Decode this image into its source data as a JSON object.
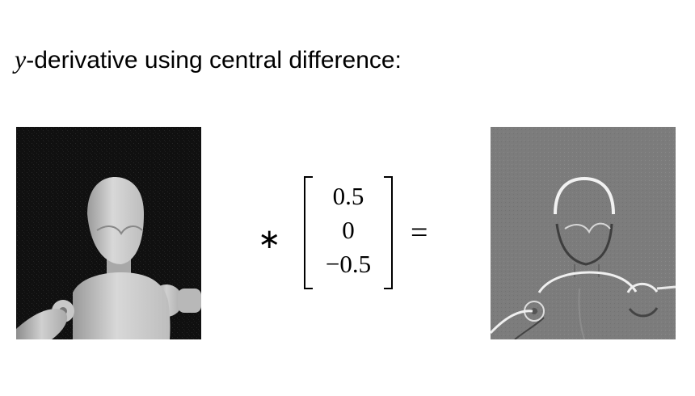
{
  "title": {
    "variable": "y",
    "rest": "-derivative using central difference:"
  },
  "images": {
    "input": {
      "icon": "wooden-mannequin-photo"
    },
    "output": {
      "icon": "mannequin-y-derivative-emboss"
    }
  },
  "operators": {
    "convolution": "∗",
    "equals": "="
  },
  "kernel": {
    "values": [
      "0.5",
      "0",
      "−0.5"
    ]
  }
}
